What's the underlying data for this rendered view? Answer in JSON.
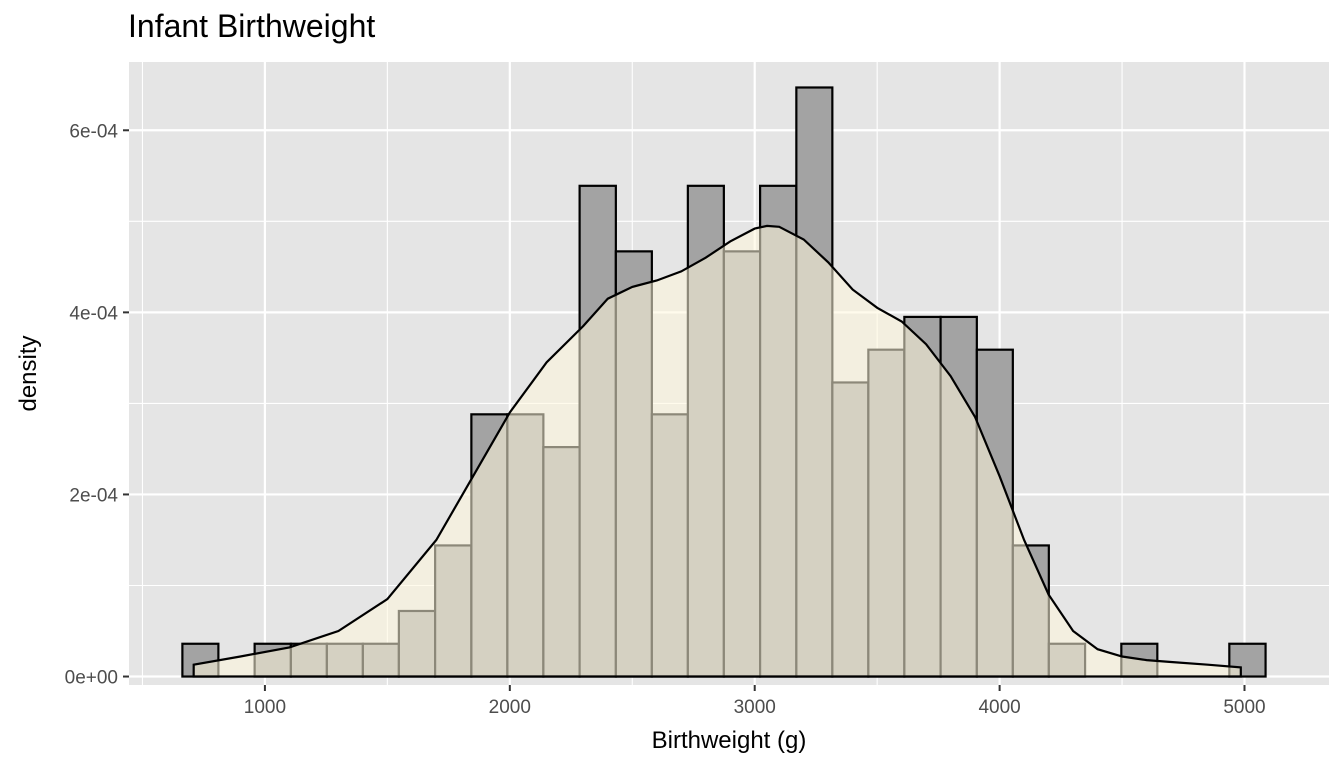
{
  "chart_data": {
    "type": "bar",
    "title": "Infant Birthweight",
    "xlabel": "Birthweight (g)",
    "ylabel": "density",
    "xlim": [
      445,
      5345
    ],
    "ylim": [
      -9.3e-06,
      0.000675
    ],
    "x_ticks": [
      1000,
      2000,
      3000,
      4000,
      5000
    ],
    "x_tick_labels": [
      "1000",
      "2000",
      "3000",
      "4000",
      "5000"
    ],
    "y_ticks": [
      0,
      0.0002,
      0.0004,
      0.0006
    ],
    "y_tick_labels": [
      "0e+00",
      "2e-04",
      "4e-04",
      "6e-04"
    ],
    "grid": true,
    "panel_background": "#e5e5e5",
    "grid_color": "#ffffff",
    "histogram": {
      "fill": "#a3a3a3",
      "outline": "#000000",
      "bin_edges": [
        663,
        810,
        958,
        1106,
        1253,
        1400,
        1547,
        1695,
        1843,
        1990,
        2137,
        2285,
        2433,
        2580,
        2727,
        2874,
        3022,
        3170,
        3317,
        3464,
        3611,
        3759,
        3907,
        4054,
        4201,
        4349,
        4497,
        4644,
        4791,
        4938,
        5086
      ],
      "values": [
        3.6e-05,
        0,
        3.6e-05,
        3.6e-05,
        3.6e-05,
        3.6e-05,
        7.2e-05,
        0.000144,
        0.000288,
        0.000288,
        0.000252,
        0.000539,
        0.000467,
        0.000288,
        0.000539,
        0.000467,
        0.000539,
        0.000647,
        0.000323,
        0.000359,
        0.000395,
        0.000395,
        0.000359,
        0.000144,
        3.6e-05,
        0,
        3.6e-05,
        0,
        0,
        3.6e-05
      ]
    },
    "density": {
      "fill": "#fff8dc",
      "fill_opacity": 0.55,
      "outline": "#000000",
      "x": [
        709,
        900,
        1100,
        1300,
        1500,
        1700,
        1850,
        2000,
        2150,
        2300,
        2400,
        2500,
        2600,
        2700,
        2800,
        2900,
        3000,
        3050,
        3100,
        3200,
        3300,
        3400,
        3500,
        3600,
        3700,
        3800,
        3900,
        4000,
        4100,
        4200,
        4300,
        4400,
        4500,
        4600,
        4700,
        4850,
        4985
      ],
      "y": [
        1.3e-05,
        2.2e-05,
        3.2e-05,
        5e-05,
        8.5e-05,
        0.00015,
        0.00022,
        0.00029,
        0.000345,
        0.000385,
        0.000415,
        0.000428,
        0.000435,
        0.000445,
        0.00046,
        0.000478,
        0.000492,
        0.000495,
        0.000494,
        0.00048,
        0.000455,
        0.000425,
        0.000405,
        0.00039,
        0.000365,
        0.00033,
        0.000285,
        0.00022,
        0.00015,
        9e-05,
        5e-05,
        3e-05,
        2.2e-05,
        1.8e-05,
        1.6e-05,
        1.3e-05,
        1e-05
      ]
    }
  }
}
